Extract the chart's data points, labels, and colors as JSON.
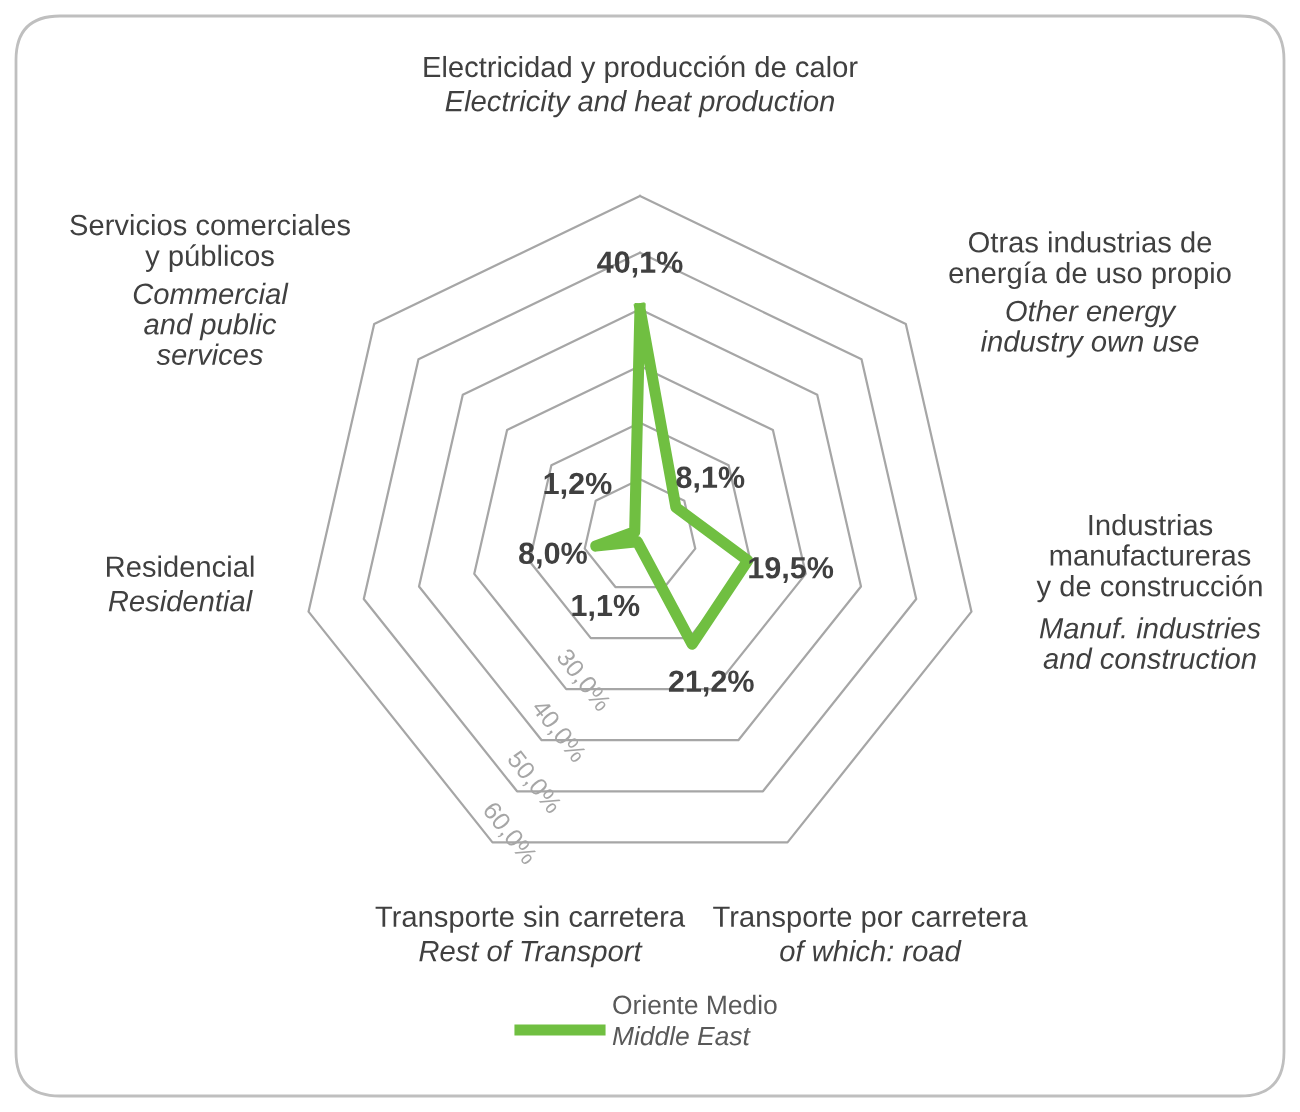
{
  "chart_data": {
    "type": "radar",
    "categories": [
      "Electricidad y producción de calor\n\nElectricity and heat production",
      "Otras industrias de\nenergía de uso propio\n\nOther energy\nindustry own use",
      "Industrias\nmanufactureras\ny de construcción\n\nManuf. industries\nand construction",
      "Transporte por carretera\n\nof which: road",
      "Transporte sin carretera\n\nRest of Transport",
      "Residencial\n\nResidential",
      "Servicios comerciales\ny públicos\n\nCommercial\nand public\nservices"
    ],
    "series": [
      {
        "name": "Oriente Medio\n\nMiddle East",
        "color": "#70bf41",
        "values": [
          40.1,
          8.1,
          19.5,
          21.2,
          1.1,
          8.0,
          1.2
        ],
        "value_labels": [
          "40,1%",
          "8,1%",
          "19,5%",
          "21,2%",
          "1,1%",
          "8,0%",
          "1,2%"
        ]
      }
    ],
    "ylim": [
      0,
      60
    ],
    "yticks": [
      {
        "value": 30,
        "label": "30,0%"
      },
      {
        "value": 40,
        "label": "40,0%"
      },
      {
        "value": 50,
        "label": "50,0%"
      },
      {
        "value": 60,
        "label": "60,0%"
      }
    ],
    "legend": "bottom",
    "grid": true
  }
}
